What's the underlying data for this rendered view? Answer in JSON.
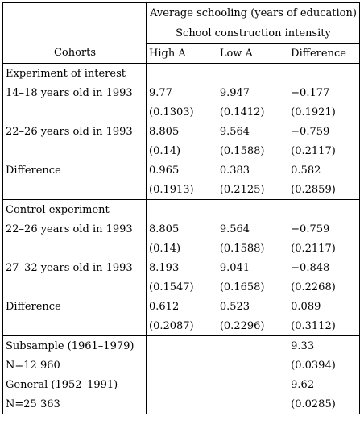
{
  "header": {
    "super_title": "Average schooling (years of education)",
    "sub_title": "School construction intensity",
    "row_label": "Cohorts",
    "col_high": "High A",
    "col_low": "Low A",
    "col_diff": "Difference"
  },
  "sections": [
    {
      "title": "Experiment of interest",
      "rows": [
        {
          "label": "14–18 years old in 1993",
          "high": "9.77",
          "low": "9.947",
          "diff": "−0.177",
          "high_se": "(0.1303)",
          "low_se": "(0.1412)",
          "diff_se": "(0.1921)"
        },
        {
          "label": "22–26 years old in 1993",
          "high": "8.805",
          "low": "9.564",
          "diff": "−0.759",
          "high_se": "(0.14)",
          "low_se": "(0.1588)",
          "diff_se": "(0.2117)"
        },
        {
          "label": "Difference",
          "high": "0.965",
          "low": "0.383",
          "diff": "0.582",
          "high_se": "(0.1913)",
          "low_se": "(0.2125)",
          "diff_se": "(0.2859)"
        }
      ]
    },
    {
      "title": "Control experiment",
      "rows": [
        {
          "label": "22–26 years old in 1993",
          "high": "8.805",
          "low": "9.564",
          "diff": "−0.759",
          "high_se": "(0.14)",
          "low_se": "(0.1588)",
          "diff_se": "(0.2117)"
        },
        {
          "label": "27–32 years old in 1993",
          "high": "8.193",
          "low": "9.041",
          "diff": "−0.848",
          "high_se": "(0.1547)",
          "low_se": "(0.1658)",
          "diff_se": "(0.2268)"
        },
        {
          "label": "Difference",
          "high": "0.612",
          "low": "0.523",
          "diff": "0.089",
          "high_se": "(0.2087)",
          "low_se": "(0.2296)",
          "diff_se": "(0.3112)"
        }
      ]
    }
  ],
  "footer": {
    "subsample_label": "Subsample (1961–1979)",
    "subsample_value": "9.33",
    "subsample_n": "N=12 960",
    "subsample_se": "(0.0394)",
    "general_label": "General (1952–1991)",
    "general_value": "9.62",
    "general_n": "N=25 363",
    "general_se": "(0.0285)"
  }
}
